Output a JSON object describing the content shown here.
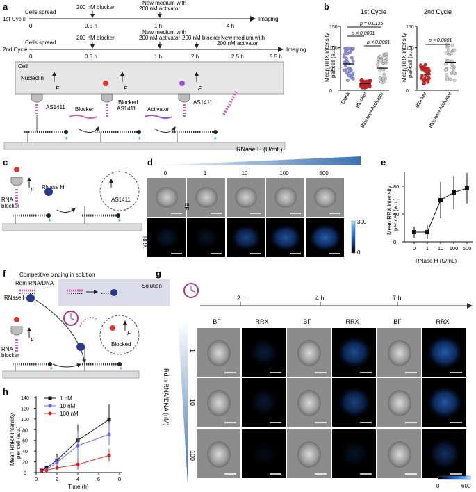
{
  "panels": {
    "a": "a",
    "b": "b",
    "c": "c",
    "d": "d",
    "e": "e",
    "f": "f",
    "g": "g",
    "h": "h"
  },
  "panel_a": {
    "cycle1": "1st Cycle",
    "cycle2": "2nd Cycle",
    "cells_spread": "Cells spread",
    "blocker_200": "200 nM blocker",
    "new_medium_1": "New medium with",
    "new_medium_2": "200 nM activator",
    "imaging": "Imaging",
    "t1": [
      "0",
      "0.5 h",
      "1 h",
      "4 h"
    ],
    "t2": [
      "0",
      "0.5 h",
      "1 h",
      "2 h",
      "2.5 h",
      "5.5 h"
    ],
    "cell": "Cell",
    "nucleolin": "Nucleolin",
    "force": "F",
    "as1411": "AS1411",
    "blocked_as1411_1": "Blocked",
    "blocked_as1411_2": "AS1411",
    "blocker": "Blocker",
    "activator": "Activator"
  },
  "panel_b": {
    "title1": "1st Cycle",
    "title2": "2nd Cycle",
    "ylabel1": "Mean RRX intensity",
    "ylabel2": "per cell (a.u.)",
    "yticks": [
      "0",
      "50",
      "100",
      "150"
    ],
    "cats1": [
      "Blank",
      "Blocker",
      "Blocker+Activator"
    ],
    "cats2": [
      "Blocker",
      "Blocker+Activator"
    ],
    "p_a": "p = 0.0135",
    "p_b": "p < 0.0001",
    "p_c": "p < 0.0001",
    "p_d": "p < 0.0001"
  },
  "panel_c": {
    "rnase_h": "RNase H",
    "rna": "RNA",
    "blocker": "blocker",
    "as1411": "AS1411",
    "force": "F"
  },
  "panel_d": {
    "title": "RNase H (U/mL)",
    "cols": [
      "0",
      "1",
      "10",
      "100",
      "500"
    ],
    "rows": [
      "BF",
      "RRX"
    ],
    "cbar_max": "300",
    "cbar_min": "0"
  },
  "panel_e": {
    "xlabel": "RNase H (U/mL)",
    "ylabel1": "Mean RRX intensity",
    "ylabel2": "per cell (a.u.)",
    "yticks": [
      "0",
      "40",
      "80"
    ],
    "xticks": [
      "0",
      "1",
      "10",
      "100",
      "500"
    ]
  },
  "panel_f": {
    "title": "Competitive binding in solution",
    "rdm": "Rdm RNA/DNA",
    "solution": "Solution",
    "rnase_h": "RNase H",
    "rna": "RNA",
    "blocker": "blocker",
    "blocked": "Blocked",
    "force": "F"
  },
  "panel_g": {
    "times": [
      "2 h",
      "4 h",
      "7 h"
    ],
    "col_labels": [
      "BF",
      "RRX",
      "BF",
      "RRX",
      "BF",
      "RRX"
    ],
    "row_labels": [
      "1",
      "10",
      "100"
    ],
    "ylabel": "Rdm RNA/DNA (nM)",
    "cbar_min": "0",
    "cbar_max": "600"
  },
  "panel_h": {
    "xlabel": "Time (h)",
    "ylabel1": "Mean RhRX intensity",
    "ylabel2": "per cell (a.u.)",
    "yticks": [
      "0",
      "20",
      "40",
      "60",
      "80",
      "100",
      "120",
      "140"
    ],
    "xticks": [
      "0",
      "2",
      "4",
      "6",
      "8"
    ],
    "legend": [
      "1 nM",
      "10 nM",
      "100 nM"
    ]
  },
  "chart_data": [
    {
      "type": "scatter",
      "ylim": [
        0,
        150
      ],
      "categories": [
        "Blank",
        "Blocker",
        "Blocker+Activator"
      ],
      "series": [
        {
          "values": [
            62,
            16,
            52
          ]
        }
      ]
    },
    {
      "type": "scatter",
      "ylim": [
        0,
        150
      ],
      "categories": [
        "Blocker",
        "Blocker+Activator"
      ],
      "series": [
        {
          "values": [
            38,
            66
          ]
        }
      ]
    },
    {
      "type": "line",
      "x": [
        "0",
        "1",
        "10",
        "100",
        "500"
      ],
      "ylim": [
        0,
        100
      ],
      "series": [
        {
          "values": [
            14,
            14,
            60,
            71,
            77
          ],
          "err": [
            8,
            10,
            26,
            24,
            22
          ]
        }
      ]
    },
    {
      "type": "line",
      "x": [
        0.5,
        1,
        2,
        4,
        7
      ],
      "xlim": [
        0,
        8
      ],
      "ylim": [
        0,
        140
      ],
      "series": [
        {
          "name": "1 nM",
          "color": "#111111",
          "values": [
            4,
            9,
            23,
            60,
            99
          ],
          "err": [
            2,
            4,
            12,
            30,
            28
          ]
        },
        {
          "name": "10 nM",
          "color": "#6a6af0",
          "values": [
            3,
            6,
            19,
            50,
            71
          ],
          "err": [
            2,
            4,
            10,
            28,
            20
          ]
        },
        {
          "name": "100 nM",
          "color": "#e02020",
          "values": [
            3,
            4,
            9,
            15,
            32
          ],
          "err": [
            2,
            2,
            5,
            10,
            12
          ]
        }
      ]
    }
  ]
}
